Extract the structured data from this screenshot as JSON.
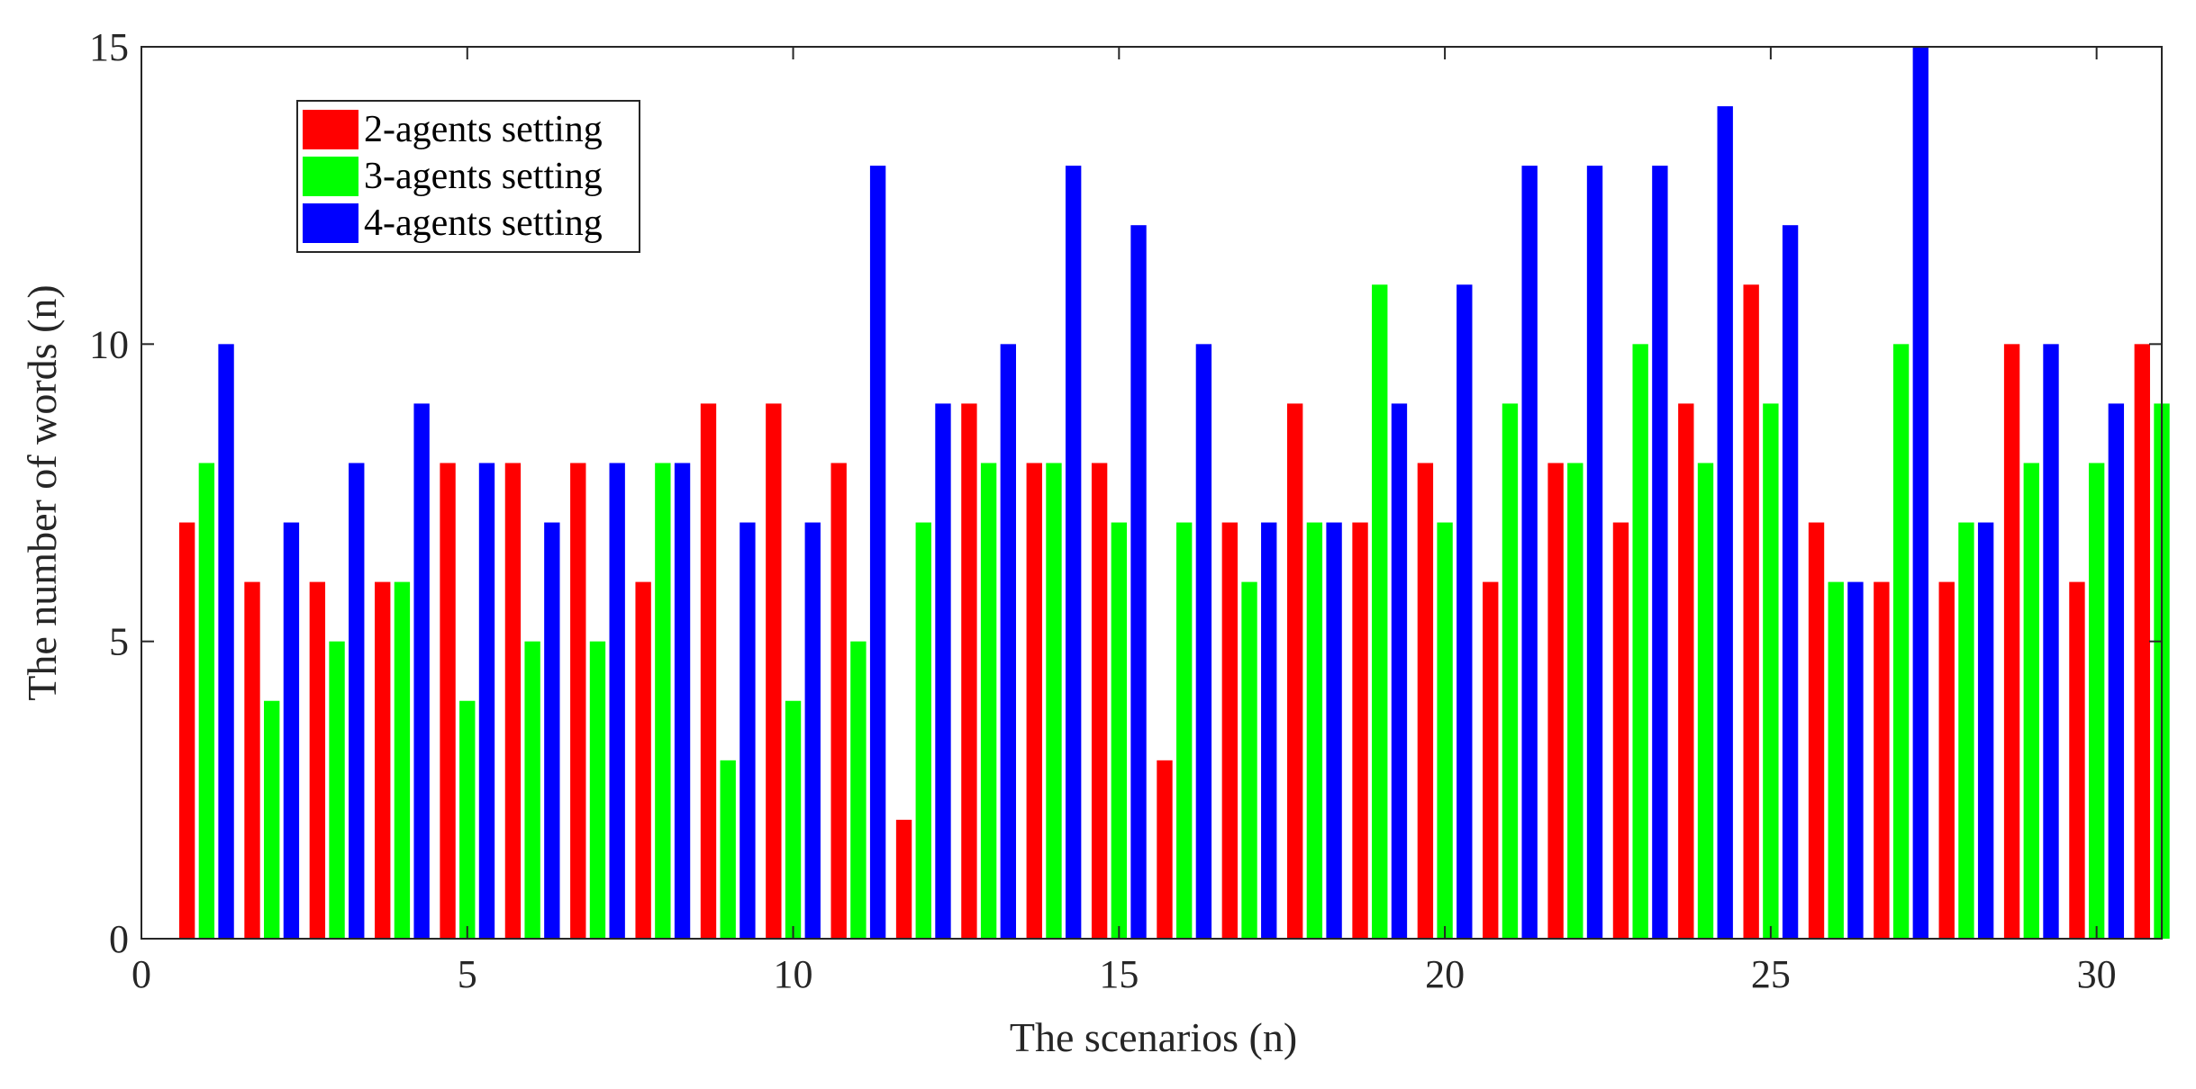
{
  "chart_data": {
    "type": "bar",
    "title": "",
    "xlabel": "The scenarios (n)",
    "ylabel": "The number of words (n)",
    "xlim": [
      0,
      31
    ],
    "ylim": [
      0,
      15
    ],
    "xticks": [
      0,
      5,
      10,
      15,
      20,
      25,
      30
    ],
    "yticks": [
      0,
      5,
      10,
      15
    ],
    "grid": false,
    "legend_position": "top-left",
    "categories": [
      1,
      2,
      3,
      4,
      5,
      6,
      7,
      8,
      9,
      10,
      11,
      12,
      13,
      14,
      15,
      16,
      17,
      18,
      19,
      20,
      21,
      22,
      23,
      24,
      25,
      26,
      27,
      28,
      29,
      30,
      31
    ],
    "series": [
      {
        "name": "2-agents setting",
        "color": "#ff0000",
        "values": [
          7,
          6,
          6,
          6,
          8,
          8,
          8,
          6,
          9,
          9,
          8,
          2,
          9,
          8,
          8,
          3,
          7,
          9,
          7,
          8,
          6,
          8,
          7,
          9,
          11,
          7,
          6,
          6,
          10,
          6,
          10
        ]
      },
      {
        "name": "3-agents setting",
        "color": "#00ff00",
        "values": [
          8,
          4,
          5,
          6,
          4,
          5,
          5,
          8,
          3,
          4,
          5,
          7,
          8,
          8,
          7,
          7,
          6,
          7,
          11,
          7,
          9,
          8,
          10,
          8,
          9,
          6,
          10,
          7,
          8,
          8,
          9
        ]
      },
      {
        "name": "4-agents setting",
        "color": "#0000ff",
        "values": [
          10,
          7,
          8,
          9,
          8,
          7,
          8,
          8,
          7,
          7,
          13,
          9,
          10,
          13,
          12,
          10,
          7,
          7,
          9,
          11,
          13,
          13,
          13,
          14,
          12,
          6,
          15,
          7,
          10,
          9,
          null
        ]
      }
    ]
  }
}
